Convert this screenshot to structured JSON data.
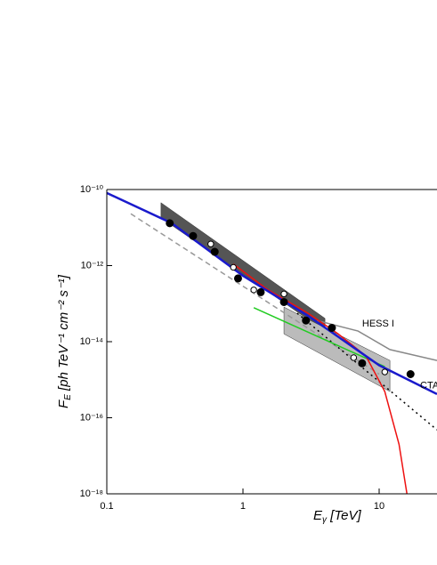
{
  "chart_data": {
    "type": "line",
    "x_label": {
      "main": "E",
      "sub": "γ",
      "rest": " [TeV]"
    },
    "y_label": {
      "main": "F",
      "sub": "E",
      "rest": " [ph TeV⁻¹ cm⁻² s⁻¹]"
    },
    "log_x": true,
    "log_y": true,
    "xlim": [
      0.1,
      26.6
    ],
    "ylim": [
      1e-18,
      1e-10
    ],
    "xticks": [
      0.1,
      1,
      {
        "value": 10,
        "label": "10"
      }
    ],
    "yticks": [
      {
        "value": 1e-10,
        "label": "10⁻¹⁰"
      },
      {
        "value": 1e-12,
        "label": "10⁻¹²"
      },
      {
        "value": 1e-14,
        "label": "10⁻¹⁴"
      },
      {
        "value": 1e-16,
        "label": "10⁻¹⁶"
      },
      {
        "value": 1e-18,
        "label": "10⁻¹⁸"
      }
    ],
    "annotations": [
      {
        "text": "HESS I",
        "x": 7.5,
        "y": 2.9e-14
      },
      {
        "text": "CTA",
        "x": 20,
        "y": 7e-16
      }
    ],
    "series": [
      {
        "kind": "band",
        "color": "#555555",
        "x": [
          0.25,
          4
        ],
        "upper": [
          4.5e-11,
          4.1e-14
        ],
        "lower": [
          1.8e-11,
          1.9e-14
        ]
      },
      {
        "kind": "band",
        "color": "#bbbbbb",
        "x": [
          2,
          12
        ],
        "upper": [
          8.1e-14,
          3.2e-15
        ],
        "lower": [
          1.6e-14,
          4.9e-16
        ]
      },
      {
        "kind": "line",
        "color": "#999999",
        "dash": "6,4",
        "x": [
          0.15,
          10
        ],
        "values": [
          2.3e-11,
          1.4e-15
        ]
      },
      {
        "kind": "line",
        "color": "#000000",
        "dash": "2,4",
        "x": [
          2.5,
          26.6
        ],
        "values": [
          5.6e-14,
          4.8e-17
        ]
      },
      {
        "kind": "line",
        "color": "#888888",
        "x": [
          3.5,
          7,
          12,
          26.6
        ],
        "values": [
          3.6e-14,
          1.9e-14,
          6.2e-15,
          3.2e-15
        ]
      },
      {
        "kind": "line",
        "color": "#22cc22",
        "x": [
          1.2,
          11
        ],
        "values": [
          7.8e-14,
          2.2e-15
        ]
      },
      {
        "kind": "line",
        "color": "#ee1111",
        "x": [
          0.85,
          1.5,
          3,
          5,
          8,
          11,
          14,
          16
        ],
        "values": [
          1.1e-12,
          2.4e-13,
          5.6e-14,
          1.6e-14,
          4.2e-15,
          4.9e-16,
          2e-17,
          1e-18
        ]
      },
      {
        "kind": "line",
        "color": "#1a1acc",
        "width": 2.5,
        "x": [
          0.1,
          0.3,
          1,
          3,
          10,
          26.6
        ],
        "values": [
          8.1e-11,
          1.3e-11,
          5.4e-13,
          4.8e-14,
          2.4e-15,
          4.2e-16
        ]
      },
      {
        "kind": "scatter",
        "color": "#000000",
        "filled": false,
        "x": [
          0.58,
          0.85,
          1.2,
          2.0,
          6.5,
          11
        ],
        "values": [
          3.7e-12,
          9e-13,
          2.3e-13,
          1.8e-13,
          3.8e-15,
          1.6e-15
        ]
      },
      {
        "kind": "scatter",
        "color": "#000000",
        "filled": true,
        "x": [
          0.29,
          0.43,
          0.62,
          0.92,
          1.35,
          2.0,
          2.9,
          4.5,
          7.5,
          17
        ],
        "values": [
          1.3e-11,
          6e-12,
          2.3e-12,
          4.6e-13,
          2e-13,
          1.1e-13,
          3.6e-14,
          2.3e-14,
          2.7e-15,
          1.4e-15
        ]
      }
    ]
  }
}
